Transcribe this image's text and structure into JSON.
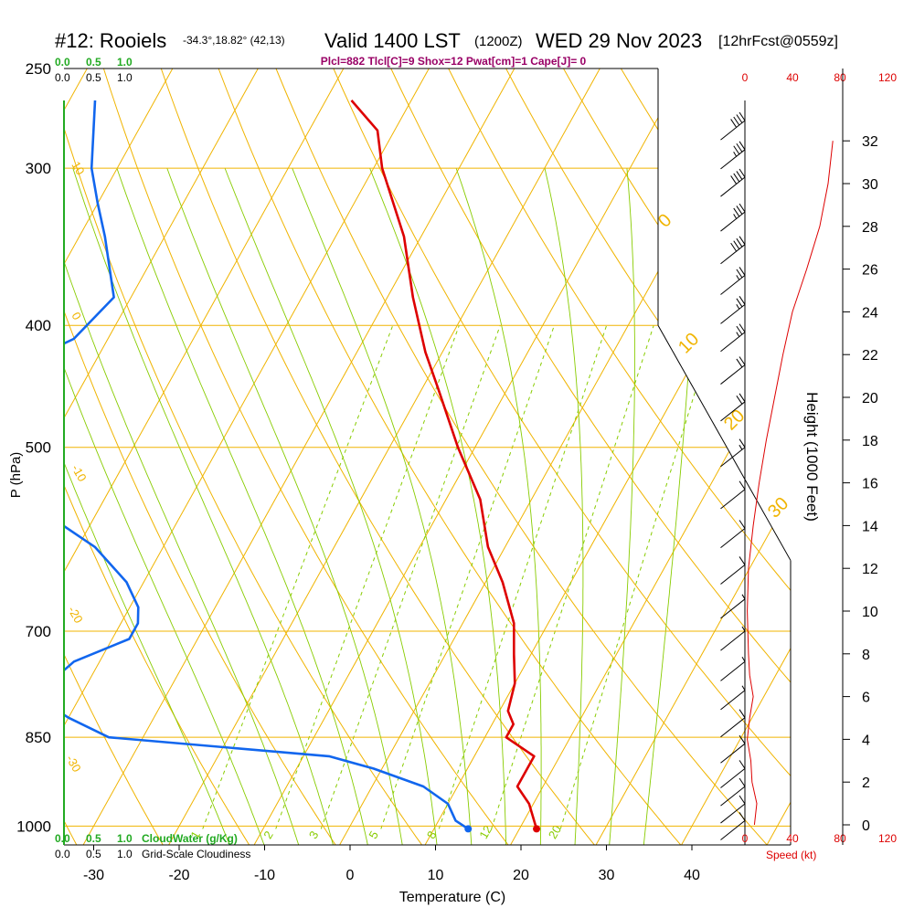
{
  "header": {
    "station": "#12: Rooiels",
    "coords": "-34.3°,18.82° (42,13)",
    "valid": "Valid 1400 LST",
    "utc": "(1200Z)",
    "date": "WED 29 Nov 2023",
    "forecast": "[12hrFcst@0559z]",
    "indices": "Plcl=882 Tlcl[C]=9 Shox=12 Pwat[cm]=1 Cape[J]= 0"
  },
  "colors": {
    "isotherm": "#f0b400",
    "dry_adiabat": "#f0b400",
    "moist_adiabat": "#88cc00",
    "mixing_ratio": "#88cc00",
    "temperature": "#dd0000",
    "dewpoint": "#1166ee",
    "cloud": "#22aa22",
    "wind": "#000000",
    "speed": "#dd0000"
  },
  "chart_data": {
    "type": "line",
    "title": "Skew-T sounding",
    "xlabel": "Temperature (C)",
    "ylabel": "P (hPa)",
    "right_label": "Height (1000 Feet)",
    "x_ticks": [
      -30,
      -20,
      -10,
      0,
      10,
      20,
      30,
      40
    ],
    "p_ticks": [
      250,
      300,
      400,
      500,
      700,
      850,
      1000
    ],
    "height_ticks": [
      0,
      2,
      4,
      6,
      8,
      10,
      12,
      14,
      16,
      18,
      20,
      22,
      24,
      26,
      28,
      30,
      32
    ],
    "xlim": [
      -35,
      36
    ],
    "plim": [
      250,
      1050
    ],
    "isotherm_labels": [
      {
        "text": "10"
      },
      {
        "text": "0"
      },
      {
        "text": "-10"
      },
      {
        "text": "-20"
      },
      {
        "text": "-30"
      },
      {
        "text": "0"
      },
      {
        "text": "10"
      },
      {
        "text": "20"
      },
      {
        "text": "30"
      }
    ],
    "mixing_ratio_labels": [
      "1",
      "2",
      "3",
      "5",
      "8",
      "12",
      "20"
    ],
    "cloud_scale": {
      "top_green": [
        "0.0",
        "0.5",
        "1.0"
      ],
      "top_black": [
        "0.0",
        "0.5",
        "1.0"
      ],
      "bottom_green": [
        "0.0",
        "0.5",
        "1.0"
      ],
      "bottom_black": [
        "0.0",
        "0.5",
        "1.0"
      ],
      "bottom_green_label": "CloudWater (g/Kg)",
      "bottom_black_label": "Grid-Scale Cloudiness"
    },
    "speed_scale": {
      "ticks": [
        "0",
        "40",
        "80",
        "120"
      ],
      "label": "Speed (kt)"
    },
    "series": [
      {
        "name": "Temperature",
        "points": [
          {
            "p": 265,
            "t": -47
          },
          {
            "p": 280,
            "t": -42
          },
          {
            "p": 300,
            "t": -39
          },
          {
            "p": 340,
            "t": -32
          },
          {
            "p": 380,
            "t": -27
          },
          {
            "p": 420,
            "t": -22
          },
          {
            "p": 450,
            "t": -18
          },
          {
            "p": 500,
            "t": -12
          },
          {
            "p": 550,
            "t": -6
          },
          {
            "p": 600,
            "t": -2
          },
          {
            "p": 640,
            "t": 2
          },
          {
            "p": 690,
            "t": 6
          },
          {
            "p": 730,
            "t": 8
          },
          {
            "p": 770,
            "t": 10
          },
          {
            "p": 810,
            "t": 11
          },
          {
            "p": 830,
            "t": 12.5
          },
          {
            "p": 850,
            "t": 12.5
          },
          {
            "p": 880,
            "t": 17
          },
          {
            "p": 900,
            "t": 17
          },
          {
            "p": 930,
            "t": 17
          },
          {
            "p": 960,
            "t": 19.5
          },
          {
            "p": 1005,
            "t": 22
          }
        ]
      },
      {
        "name": "Dewpoint",
        "points": [
          {
            "p": 265,
            "t": -77
          },
          {
            "p": 300,
            "t": -73
          },
          {
            "p": 320,
            "t": -70
          },
          {
            "p": 340,
            "t": -67
          },
          {
            "p": 380,
            "t": -62
          },
          {
            "p": 410,
            "t": -64
          },
          {
            "p": 440,
            "t": -71
          },
          {
            "p": 470,
            "t": -72
          },
          {
            "p": 500,
            "t": -67
          },
          {
            "p": 560,
            "t": -57
          },
          {
            "p": 600,
            "t": -48
          },
          {
            "p": 640,
            "t": -42
          },
          {
            "p": 670,
            "t": -39
          },
          {
            "p": 690,
            "t": -38
          },
          {
            "p": 710,
            "t": -38
          },
          {
            "p": 740,
            "t": -43
          },
          {
            "p": 760,
            "t": -44
          },
          {
            "p": 790,
            "t": -45
          },
          {
            "p": 820,
            "t": -40
          },
          {
            "p": 850,
            "t": -34
          },
          {
            "p": 880,
            "t": -7
          },
          {
            "p": 900,
            "t": -1
          },
          {
            "p": 930,
            "t": 6
          },
          {
            "p": 960,
            "t": 10
          },
          {
            "p": 990,
            "t": 12
          },
          {
            "p": 1005,
            "t": 14
          }
        ]
      }
    ],
    "surface_temp": {
      "p": 1005,
      "t": 22
    },
    "surface_dewpoint": {
      "p": 1005,
      "t": 14
    },
    "speed_profile": [
      {
        "h": 0,
        "kt": 8
      },
      {
        "h": 1,
        "kt": 10
      },
      {
        "h": 2,
        "kt": 6
      },
      {
        "h": 3,
        "kt": 5
      },
      {
        "h": 4,
        "kt": 2
      },
      {
        "h": 5,
        "kt": 4
      },
      {
        "h": 6,
        "kt": 7
      },
      {
        "h": 7,
        "kt": 4
      },
      {
        "h": 8,
        "kt": 3
      },
      {
        "h": 10,
        "kt": 2
      },
      {
        "h": 12,
        "kt": 3
      },
      {
        "h": 14,
        "kt": 7
      },
      {
        "h": 16,
        "kt": 12
      },
      {
        "h": 18,
        "kt": 18
      },
      {
        "h": 20,
        "kt": 25
      },
      {
        "h": 22,
        "kt": 32
      },
      {
        "h": 24,
        "kt": 40
      },
      {
        "h": 26,
        "kt": 52
      },
      {
        "h": 28,
        "kt": 63
      },
      {
        "h": 30,
        "kt": 70
      },
      {
        "h": 32,
        "kt": 74
      }
    ],
    "wind_barbs": [
      {
        "p": 275,
        "kt": 40
      },
      {
        "p": 290,
        "kt": 35
      },
      {
        "p": 305,
        "kt": 40
      },
      {
        "p": 325,
        "kt": 35
      },
      {
        "p": 345,
        "kt": 40
      },
      {
        "p": 365,
        "kt": 25
      },
      {
        "p": 385,
        "kt": 25
      },
      {
        "p": 405,
        "kt": 25
      },
      {
        "p": 430,
        "kt": 20
      },
      {
        "p": 460,
        "kt": 20
      },
      {
        "p": 500,
        "kt": 15
      },
      {
        "p": 540,
        "kt": 10
      },
      {
        "p": 580,
        "kt": 10
      },
      {
        "p": 620,
        "kt": 10
      },
      {
        "p": 660,
        "kt": 5
      },
      {
        "p": 700,
        "kt": 5
      },
      {
        "p": 740,
        "kt": 5
      },
      {
        "p": 780,
        "kt": 5
      },
      {
        "p": 820,
        "kt": 10
      },
      {
        "p": 860,
        "kt": 10
      },
      {
        "p": 900,
        "kt": 10
      },
      {
        "p": 930,
        "kt": 10
      },
      {
        "p": 960,
        "kt": 10
      },
      {
        "p": 990,
        "kt": 10
      }
    ]
  }
}
